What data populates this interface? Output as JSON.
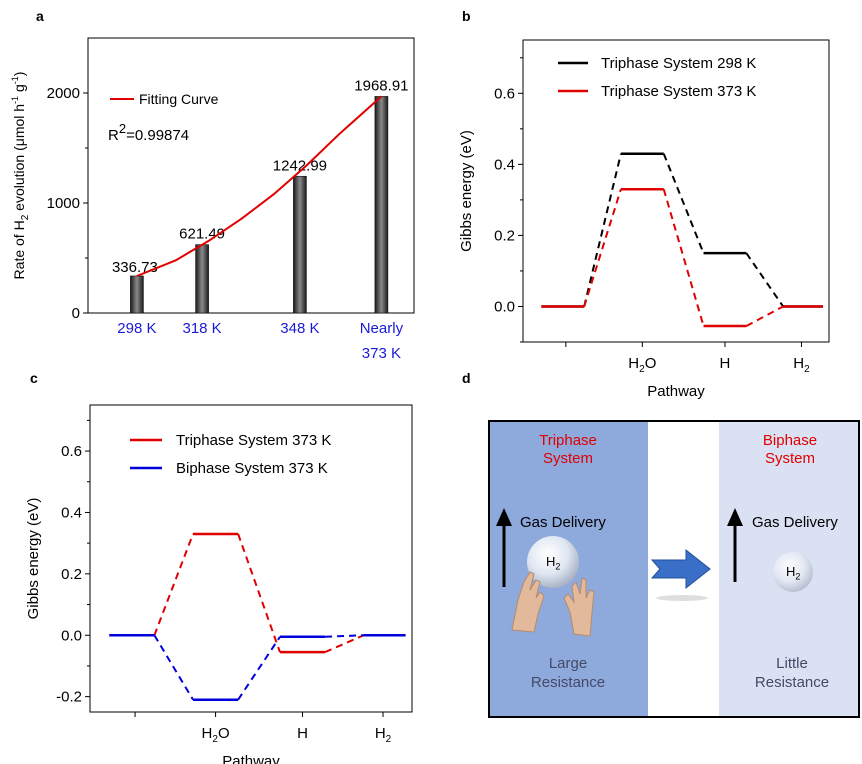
{
  "panels": {
    "a": "a",
    "b": "b",
    "c": "c",
    "d": "d"
  },
  "chart_data": [
    {
      "panel": "a",
      "type": "bar",
      "categories": [
        "298 K",
        "318 K",
        "348 K",
        "Nearly 373 K"
      ],
      "x_values": [
        298,
        318,
        348,
        373
      ],
      "values": [
        336.73,
        621.49,
        1242.99,
        1968.91
      ],
      "value_labels": [
        "336.73",
        "621.49",
        "1242.99",
        "1968.91"
      ],
      "ylabel": "Rate of H2 evolution (μmol h-1 g-1)",
      "ylim": [
        0,
        2500
      ],
      "yticks": [
        "0",
        "1000",
        "2000"
      ],
      "legend": {
        "entries": [
          "Fitting Curve"
        ],
        "placement": "top-left"
      },
      "fit_label": "Fitting Curve",
      "r2_label": "R2=0.99874",
      "fit_curve": {
        "x": [
          298,
          310,
          320,
          330,
          340,
          350,
          360,
          373
        ],
        "y": [
          336.73,
          480,
          655,
          855,
          1080,
          1340,
          1625,
          1968.91
        ]
      }
    },
    {
      "panel": "b",
      "type": "line",
      "xlabel": "Pathway",
      "ylabel": "Gibbs energy (eV)",
      "categories": [
        "H2O",
        "H",
        "H2"
      ],
      "ylim": [
        -0.1,
        0.75
      ],
      "yticks": [
        "0.0",
        "0.2",
        "0.4",
        "0.6"
      ],
      "series": [
        {
          "name": "Triphase System 298 K",
          "color": "#000000",
          "levels": [
            0.0,
            0.43,
            0.15,
            0.0
          ]
        },
        {
          "name": "Triphase System 373 K",
          "color": "#e00000",
          "levels": [
            0.0,
            0.33,
            -0.055,
            0.0
          ]
        }
      ]
    },
    {
      "panel": "c",
      "type": "line",
      "xlabel": "Pathway",
      "ylabel": "Gibbs energy (eV)",
      "categories": [
        "H2O",
        "H",
        "H2"
      ],
      "ylim": [
        -0.25,
        0.75
      ],
      "yticks": [
        "-0.2",
        "0.0",
        "0.2",
        "0.4",
        "0.6"
      ],
      "series": [
        {
          "name": "Triphase System 373 K",
          "color": "#e00000",
          "levels": [
            0.0,
            0.33,
            -0.055,
            0.0
          ]
        },
        {
          "name": "Biphase System 373 K",
          "color": "#0000dd",
          "levels": [
            0.0,
            -0.21,
            -0.005,
            0.0
          ]
        }
      ]
    }
  ],
  "schematic": {
    "left_title": [
      "Triphase",
      "System"
    ],
    "right_title": [
      "Biphase",
      "System"
    ],
    "left_gas": "Gas Delivery",
    "right_gas": "Gas Delivery",
    "left_h2": "H2",
    "right_h2": "H2",
    "left_resistance": [
      "Large",
      "Resistance"
    ],
    "right_resistance": [
      "Little",
      "Resistance"
    ],
    "colors": {
      "left_bg": "#8ea9dc",
      "right_bg": "#d9e1f3",
      "title": "#e00000",
      "arrow": "#3a6fc8"
    }
  }
}
